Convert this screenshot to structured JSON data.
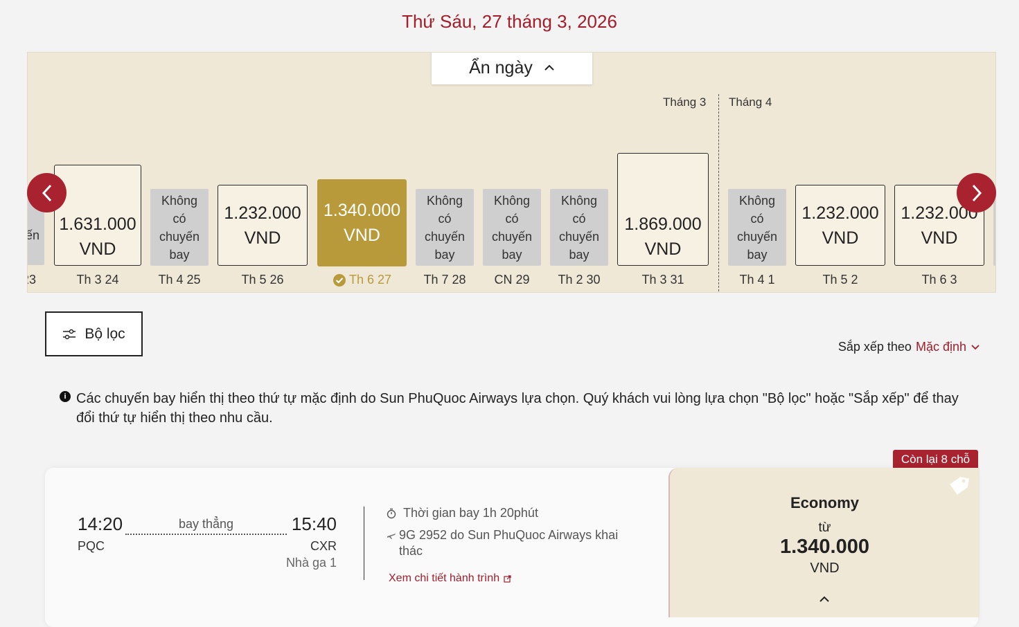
{
  "page_title": "Thứ Sáu, 27 tháng 3, 2026",
  "hide_dates_label": "Ẩn ngày",
  "months": [
    "Tháng 3",
    "Tháng 4"
  ],
  "dates": [
    {
      "kind": "partial-left",
      "price_line1": "",
      "price_line2": "ến",
      "label": "23"
    },
    {
      "kind": "price",
      "price": "1.631.000",
      "currency": "VND",
      "label": "Th 3 24"
    },
    {
      "kind": "none",
      "text": [
        "Không",
        "có",
        "chuyến",
        "bay"
      ],
      "label": "Th 4 25"
    },
    {
      "kind": "price",
      "price": "1.232.000",
      "currency": "VND",
      "label": "Th 5 26"
    },
    {
      "kind": "selected",
      "price": "1.340.000",
      "currency": "VND",
      "label": "Th 6 27"
    },
    {
      "kind": "none",
      "text": [
        "Không",
        "có",
        "chuyến",
        "bay"
      ],
      "label": "Th 7 28"
    },
    {
      "kind": "none",
      "text": [
        "Không",
        "có",
        "chuyến",
        "bay"
      ],
      "label": "CN 29"
    },
    {
      "kind": "none",
      "text": [
        "Không",
        "có",
        "chuyến",
        "bay"
      ],
      "label": "Th 2 30"
    },
    {
      "kind": "price",
      "price": "1.869.000",
      "currency": "VND",
      "label": "Th 3 31"
    },
    {
      "kind": "none",
      "text": [
        "Không",
        "có",
        "chuyến",
        "bay"
      ],
      "label": "Th 4 1"
    },
    {
      "kind": "price",
      "price": "1.232.000",
      "currency": "VND",
      "label": "Th 5 2"
    },
    {
      "kind": "price",
      "price": "1.232.000",
      "currency": "VND",
      "label": "Th 6 3"
    }
  ],
  "filter_label": "Bộ lọc",
  "sort": {
    "prefix": "Sắp xếp theo",
    "value": "Mặc định"
  },
  "info_text": "Các chuyến bay hiển thị theo thứ tự mặc định do Sun PhuQuoc Airways lựa chọn. Quý khách vui lòng lựa chọn \"Bộ lọc\" hoặc \"Sắp xếp\" để thay đổi thứ tự hiển thị theo nhu cầu.",
  "flight": {
    "seats_left": "Còn lại 8 chỗ",
    "dep_time": "14:20",
    "dep_code": "PQC",
    "type": "bay thẳng",
    "arr_time": "15:40",
    "arr_code": "CXR",
    "arr_terminal": "Nhà ga 1",
    "duration_label": "Thời gian bay  1h 20phút",
    "operator": "9G 2952 do Sun PhuQuoc Airways khai thác",
    "details_link": "Xem chi tiết hành trình",
    "fare_class": "Economy",
    "from_label": "từ",
    "fare_price": "1.340.000",
    "fare_currency": "VND"
  },
  "colors": {
    "accent": "#a8222f",
    "gold": "#b99a3a",
    "strip_bg": "#efe8d6"
  }
}
